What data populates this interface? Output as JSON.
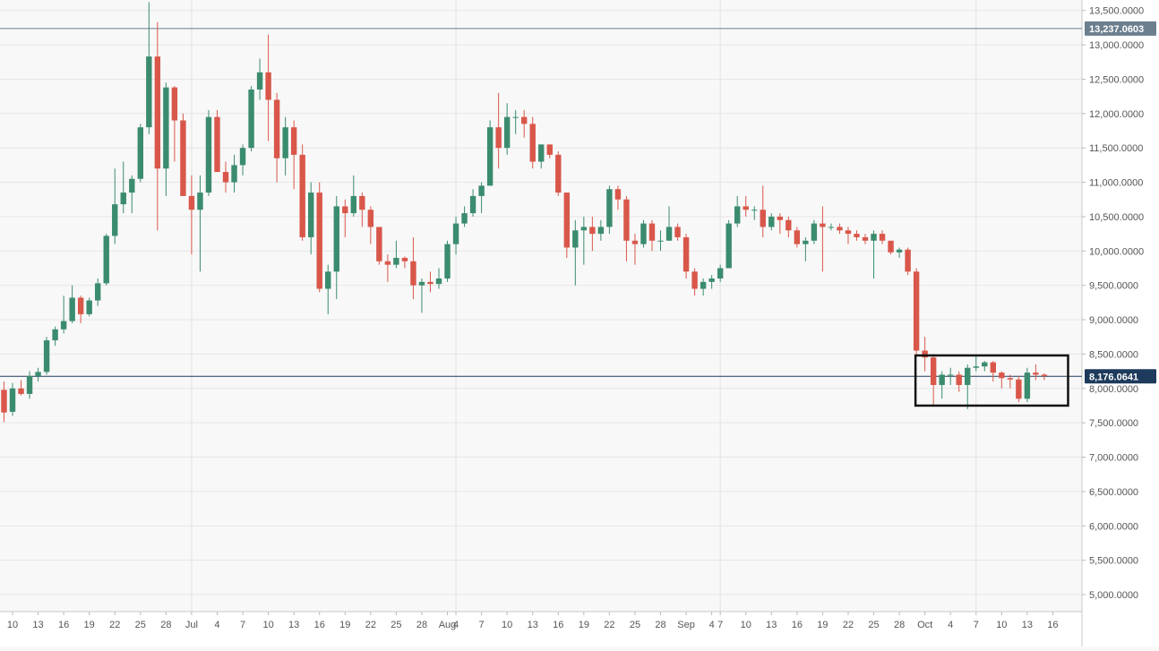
{
  "chart_data": {
    "type": "candlestick",
    "title": "",
    "ylabel": "",
    "xlabel": "",
    "ylim": [
      4700,
      13600
    ],
    "grid": true,
    "y_ticks": [
      "13,500.0000",
      "13,000.0000",
      "12,500.0000",
      "12,000.0000",
      "11,500.0000",
      "11,000.0000",
      "10,500.0000",
      "10,000.0000",
      "9,500.0000",
      "9,000.0000",
      "8,500.0000",
      "8,000.0000",
      "7,500.0000",
      "7,000.0000",
      "6,500.0000",
      "6,000.0000",
      "5,500.0000",
      "5,000.0000"
    ],
    "x_ticks": [
      "10",
      "13",
      "16",
      "19",
      "22",
      "25",
      "28",
      "Jul",
      "4",
      "7",
      "10",
      "13",
      "16",
      "19",
      "22",
      "25",
      "28",
      "Aug",
      "4",
      "7",
      "10",
      "13",
      "16",
      "19",
      "22",
      "25",
      "28",
      "Sep",
      "4",
      "7",
      "10",
      "13",
      "16",
      "19",
      "22",
      "25",
      "28",
      "Oct",
      "4",
      "7",
      "10",
      "13",
      "16"
    ],
    "ref_lines": [
      {
        "value": 13237.0603,
        "label": "13,237.0603",
        "color": "#6b7f8f"
      },
      {
        "value": 8176.0641,
        "label": "8,176.0641",
        "color": "#1e3a5c"
      }
    ],
    "highlight_box": {
      "x_start": "2019-09-24",
      "x_end": "2019-10-12",
      "y_low": 7750,
      "y_high": 8480
    },
    "colors": {
      "up": "#3b8c6e",
      "down": "#d9574a"
    },
    "candles": [
      {
        "date": "2019-06-09",
        "open": 7980,
        "high": 8100,
        "low": 7510,
        "close": 7650
      },
      {
        "date": "2019-06-10",
        "open": 7660,
        "high": 8080,
        "low": 7600,
        "close": 8000
      },
      {
        "date": "2019-06-11",
        "open": 8000,
        "high": 8120,
        "low": 7900,
        "close": 7920
      },
      {
        "date": "2019-06-12",
        "open": 7920,
        "high": 8250,
        "low": 7850,
        "close": 8180
      },
      {
        "date": "2019-06-13",
        "open": 8180,
        "high": 8300,
        "low": 8100,
        "close": 8240
      },
      {
        "date": "2019-06-14",
        "open": 8240,
        "high": 8750,
        "low": 8200,
        "close": 8700
      },
      {
        "date": "2019-06-15",
        "open": 8700,
        "high": 8900,
        "low": 8620,
        "close": 8860
      },
      {
        "date": "2019-06-16",
        "open": 8860,
        "high": 9350,
        "low": 8800,
        "close": 8980
      },
      {
        "date": "2019-06-17",
        "open": 8980,
        "high": 9500,
        "low": 8950,
        "close": 9320
      },
      {
        "date": "2019-06-18",
        "open": 9320,
        "high": 9350,
        "low": 8950,
        "close": 9080
      },
      {
        "date": "2019-06-19",
        "open": 9080,
        "high": 9320,
        "low": 9050,
        "close": 9280
      },
      {
        "date": "2019-06-20",
        "open": 9280,
        "high": 9600,
        "low": 9200,
        "close": 9530
      },
      {
        "date": "2019-06-21",
        "open": 9530,
        "high": 10250,
        "low": 9500,
        "close": 10220
      },
      {
        "date": "2019-06-22",
        "open": 10220,
        "high": 11200,
        "low": 10100,
        "close": 10680
      },
      {
        "date": "2019-06-23",
        "open": 10680,
        "high": 11300,
        "low": 10550,
        "close": 10850
      },
      {
        "date": "2019-06-24",
        "open": 10850,
        "high": 11100,
        "low": 10550,
        "close": 11050
      },
      {
        "date": "2019-06-25",
        "open": 11050,
        "high": 11850,
        "low": 11000,
        "close": 11800
      },
      {
        "date": "2019-06-26",
        "open": 11800,
        "high": 13620,
        "low": 11700,
        "close": 12830
      },
      {
        "date": "2019-06-27",
        "open": 12830,
        "high": 13330,
        "low": 10300,
        "close": 11200
      },
      {
        "date": "2019-06-28",
        "open": 11200,
        "high": 12450,
        "low": 10800,
        "close": 12380
      },
      {
        "date": "2019-06-29",
        "open": 12380,
        "high": 12400,
        "low": 11300,
        "close": 11900
      },
      {
        "date": "2019-06-30",
        "open": 11900,
        "high": 12000,
        "low": 10800,
        "close": 10800
      },
      {
        "date": "2019-07-01",
        "open": 10800,
        "high": 11100,
        "low": 9950,
        "close": 10600
      },
      {
        "date": "2019-07-02",
        "open": 10600,
        "high": 11100,
        "low": 9700,
        "close": 10850
      },
      {
        "date": "2019-07-03",
        "open": 10850,
        "high": 12050,
        "low": 10800,
        "close": 11950
      },
      {
        "date": "2019-07-04",
        "open": 11950,
        "high": 12050,
        "low": 11150,
        "close": 11150
      },
      {
        "date": "2019-07-05",
        "open": 11150,
        "high": 11300,
        "low": 10850,
        "close": 11000
      },
      {
        "date": "2019-07-06",
        "open": 11000,
        "high": 11400,
        "low": 10850,
        "close": 11250
      },
      {
        "date": "2019-07-07",
        "open": 11250,
        "high": 11550,
        "low": 11100,
        "close": 11500
      },
      {
        "date": "2019-07-08",
        "open": 11500,
        "high": 12400,
        "low": 11450,
        "close": 12350
      },
      {
        "date": "2019-07-09",
        "open": 12350,
        "high": 12800,
        "low": 12200,
        "close": 12600
      },
      {
        "date": "2019-07-10",
        "open": 12600,
        "high": 13150,
        "low": 11600,
        "close": 12200
      },
      {
        "date": "2019-07-11",
        "open": 12200,
        "high": 12300,
        "low": 11000,
        "close": 11350
      },
      {
        "date": "2019-07-12",
        "open": 11350,
        "high": 11950,
        "low": 11100,
        "close": 11800
      },
      {
        "date": "2019-07-13",
        "open": 11800,
        "high": 11900,
        "low": 10900,
        "close": 11400
      },
      {
        "date": "2019-07-14",
        "open": 11400,
        "high": 11550,
        "low": 10150,
        "close": 10200
      },
      {
        "date": "2019-07-15",
        "open": 10200,
        "high": 11000,
        "low": 9950,
        "close": 10850
      },
      {
        "date": "2019-07-16",
        "open": 10850,
        "high": 11000,
        "low": 9400,
        "close": 9450
      },
      {
        "date": "2019-07-17",
        "open": 9450,
        "high": 9800,
        "low": 9080,
        "close": 9700
      },
      {
        "date": "2019-07-18",
        "open": 9700,
        "high": 10800,
        "low": 9300,
        "close": 10650
      },
      {
        "date": "2019-07-19",
        "open": 10650,
        "high": 10750,
        "low": 10200,
        "close": 10550
      },
      {
        "date": "2019-07-20",
        "open": 10550,
        "high": 11100,
        "low": 10500,
        "close": 10800
      },
      {
        "date": "2019-07-21",
        "open": 10800,
        "high": 10850,
        "low": 10350,
        "close": 10600
      },
      {
        "date": "2019-07-22",
        "open": 10600,
        "high": 10650,
        "low": 10100,
        "close": 10350
      },
      {
        "date": "2019-07-23",
        "open": 10350,
        "high": 10350,
        "low": 9800,
        "close": 9850
      },
      {
        "date": "2019-07-24",
        "open": 9850,
        "high": 9950,
        "low": 9550,
        "close": 9800
      },
      {
        "date": "2019-07-25",
        "open": 9800,
        "high": 10150,
        "low": 9750,
        "close": 9900
      },
      {
        "date": "2019-07-26",
        "open": 9900,
        "high": 9920,
        "low": 9750,
        "close": 9850
      },
      {
        "date": "2019-07-27",
        "open": 9850,
        "high": 10200,
        "low": 9300,
        "close": 9500
      },
      {
        "date": "2019-07-28",
        "open": 9500,
        "high": 9600,
        "low": 9100,
        "close": 9550
      },
      {
        "date": "2019-07-29",
        "open": 9550,
        "high": 9700,
        "low": 9400,
        "close": 9520
      },
      {
        "date": "2019-07-30",
        "open": 9520,
        "high": 9750,
        "low": 9450,
        "close": 9600
      },
      {
        "date": "2019-07-31",
        "open": 9600,
        "high": 10150,
        "low": 9550,
        "close": 10100
      },
      {
        "date": "2019-08-01",
        "open": 10100,
        "high": 10500,
        "low": 9950,
        "close": 10400
      },
      {
        "date": "2019-08-02",
        "open": 10400,
        "high": 10650,
        "low": 10350,
        "close": 10550
      },
      {
        "date": "2019-08-03",
        "open": 10550,
        "high": 10900,
        "low": 10500,
        "close": 10800
      },
      {
        "date": "2019-08-04",
        "open": 10800,
        "high": 11000,
        "low": 10550,
        "close": 10950
      },
      {
        "date": "2019-08-05",
        "open": 10950,
        "high": 11900,
        "low": 10950,
        "close": 11800
      },
      {
        "date": "2019-08-06",
        "open": 11800,
        "high": 12300,
        "low": 11200,
        "close": 11500
      },
      {
        "date": "2019-08-07",
        "open": 11500,
        "high": 12150,
        "low": 11400,
        "close": 11950
      },
      {
        "date": "2019-08-08",
        "open": 11950,
        "high": 12050,
        "low": 11700,
        "close": 11950
      },
      {
        "date": "2019-08-09",
        "open": 11950,
        "high": 12050,
        "low": 11650,
        "close": 11850
      },
      {
        "date": "2019-08-10",
        "open": 11850,
        "high": 11950,
        "low": 11200,
        "close": 11300
      },
      {
        "date": "2019-08-11",
        "open": 11300,
        "high": 11550,
        "low": 11200,
        "close": 11550
      },
      {
        "date": "2019-08-12",
        "open": 11550,
        "high": 11550,
        "low": 11350,
        "close": 11400
      },
      {
        "date": "2019-08-13",
        "open": 11400,
        "high": 11450,
        "low": 10800,
        "close": 10850
      },
      {
        "date": "2019-08-14",
        "open": 10850,
        "high": 10850,
        "low": 9900,
        "close": 10050
      },
      {
        "date": "2019-08-15",
        "open": 10050,
        "high": 10450,
        "low": 9500,
        "close": 10300
      },
      {
        "date": "2019-08-16",
        "open": 10300,
        "high": 10500,
        "low": 9800,
        "close": 10350
      },
      {
        "date": "2019-08-17",
        "open": 10350,
        "high": 10500,
        "low": 10000,
        "close": 10250
      },
      {
        "date": "2019-08-18",
        "open": 10250,
        "high": 10450,
        "low": 10150,
        "close": 10350
      },
      {
        "date": "2019-08-19",
        "open": 10350,
        "high": 10950,
        "low": 10250,
        "close": 10900
      },
      {
        "date": "2019-08-20",
        "open": 10900,
        "high": 10950,
        "low": 10600,
        "close": 10750
      },
      {
        "date": "2019-08-21",
        "open": 10750,
        "high": 10800,
        "low": 9850,
        "close": 10150
      },
      {
        "date": "2019-08-22",
        "open": 10150,
        "high": 10250,
        "low": 9800,
        "close": 10100
      },
      {
        "date": "2019-08-23",
        "open": 10100,
        "high": 10450,
        "low": 10050,
        "close": 10400
      },
      {
        "date": "2019-08-24",
        "open": 10400,
        "high": 10450,
        "low": 10000,
        "close": 10150
      },
      {
        "date": "2019-08-25",
        "open": 10150,
        "high": 10300,
        "low": 10000,
        "close": 10150
      },
      {
        "date": "2019-08-26",
        "open": 10150,
        "high": 10650,
        "low": 10150,
        "close": 10350
      },
      {
        "date": "2019-08-27",
        "open": 10350,
        "high": 10400,
        "low": 10150,
        "close": 10200
      },
      {
        "date": "2019-08-28",
        "open": 10200,
        "high": 10250,
        "low": 9600,
        "close": 9700
      },
      {
        "date": "2019-08-29",
        "open": 9700,
        "high": 9750,
        "low": 9350,
        "close": 9450
      },
      {
        "date": "2019-08-30",
        "open": 9450,
        "high": 9600,
        "low": 9350,
        "close": 9550
      },
      {
        "date": "2019-08-31",
        "open": 9550,
        "high": 9650,
        "low": 9450,
        "close": 9600
      },
      {
        "date": "2019-09-01",
        "open": 9600,
        "high": 9800,
        "low": 9550,
        "close": 9750
      },
      {
        "date": "2019-09-02",
        "open": 9750,
        "high": 10450,
        "low": 9750,
        "close": 10400
      },
      {
        "date": "2019-09-03",
        "open": 10400,
        "high": 10800,
        "low": 10350,
        "close": 10650
      },
      {
        "date": "2019-09-04",
        "open": 10650,
        "high": 10800,
        "low": 10500,
        "close": 10600
      },
      {
        "date": "2019-09-05",
        "open": 10600,
        "high": 10650,
        "low": 10450,
        "close": 10600
      },
      {
        "date": "2019-09-06",
        "open": 10600,
        "high": 10950,
        "low": 10200,
        "close": 10350
      },
      {
        "date": "2019-09-07",
        "open": 10350,
        "high": 10550,
        "low": 10300,
        "close": 10500
      },
      {
        "date": "2019-09-08",
        "open": 10500,
        "high": 10550,
        "low": 10250,
        "close": 10450
      },
      {
        "date": "2019-09-09",
        "open": 10450,
        "high": 10500,
        "low": 10200,
        "close": 10300
      },
      {
        "date": "2019-09-10",
        "open": 10300,
        "high": 10350,
        "low": 10050,
        "close": 10100
      },
      {
        "date": "2019-09-11",
        "open": 10100,
        "high": 10200,
        "low": 9850,
        "close": 10150
      },
      {
        "date": "2019-09-12",
        "open": 10150,
        "high": 10450,
        "low": 10100,
        "close": 10400
      },
      {
        "date": "2019-09-13",
        "open": 10400,
        "high": 10650,
        "low": 9700,
        "close": 10350
      },
      {
        "date": "2019-09-14",
        "open": 10350,
        "high": 10400,
        "low": 10300,
        "close": 10350
      },
      {
        "date": "2019-09-15",
        "open": 10350,
        "high": 10400,
        "low": 10250,
        "close": 10300
      },
      {
        "date": "2019-09-16",
        "open": 10300,
        "high": 10350,
        "low": 10100,
        "close": 10250
      },
      {
        "date": "2019-09-17",
        "open": 10250,
        "high": 10300,
        "low": 10150,
        "close": 10200
      },
      {
        "date": "2019-09-18",
        "open": 10200,
        "high": 10250,
        "low": 10100,
        "close": 10150
      },
      {
        "date": "2019-09-19",
        "open": 10150,
        "high": 10300,
        "low": 9600,
        "close": 10250
      },
      {
        "date": "2019-09-20",
        "open": 10250,
        "high": 10300,
        "low": 10100,
        "close": 10150
      },
      {
        "date": "2019-09-21",
        "open": 10150,
        "high": 10150,
        "low": 9950,
        "close": 9980
      },
      {
        "date": "2019-09-22",
        "open": 9980,
        "high": 10050,
        "low": 9900,
        "close": 10020
      },
      {
        "date": "2019-09-23",
        "open": 10020,
        "high": 10050,
        "low": 9650,
        "close": 9700
      },
      {
        "date": "2019-09-24",
        "open": 9700,
        "high": 9750,
        "low": 8500,
        "close": 8550
      },
      {
        "date": "2019-09-25",
        "open": 8550,
        "high": 8750,
        "low": 8250,
        "close": 8450
      },
      {
        "date": "2019-09-26",
        "open": 8450,
        "high": 8500,
        "low": 7750,
        "close": 8050
      },
      {
        "date": "2019-09-27",
        "open": 8050,
        "high": 8250,
        "low": 7850,
        "close": 8200
      },
      {
        "date": "2019-09-28",
        "open": 8200,
        "high": 8300,
        "low": 8050,
        "close": 8200
      },
      {
        "date": "2019-09-29",
        "open": 8200,
        "high": 8250,
        "low": 7950,
        "close": 8050
      },
      {
        "date": "2019-09-30",
        "open": 8050,
        "high": 8350,
        "low": 7700,
        "close": 8300
      },
      {
        "date": "2019-10-01",
        "open": 8300,
        "high": 8500,
        "low": 8250,
        "close": 8320
      },
      {
        "date": "2019-10-02",
        "open": 8320,
        "high": 8400,
        "low": 8250,
        "close": 8380
      },
      {
        "date": "2019-10-03",
        "open": 8380,
        "high": 8400,
        "low": 8100,
        "close": 8230
      },
      {
        "date": "2019-10-04",
        "open": 8230,
        "high": 8250,
        "low": 8000,
        "close": 8150
      },
      {
        "date": "2019-10-05",
        "open": 8150,
        "high": 8200,
        "low": 8000,
        "close": 8130
      },
      {
        "date": "2019-10-06",
        "open": 8130,
        "high": 8180,
        "low": 7800,
        "close": 7850
      },
      {
        "date": "2019-10-07",
        "open": 7850,
        "high": 8300,
        "low": 7800,
        "close": 8230
      },
      {
        "date": "2019-10-08",
        "open": 8230,
        "high": 8350,
        "low": 8120,
        "close": 8200
      },
      {
        "date": "2019-10-09",
        "open": 8200,
        "high": 8220,
        "low": 8120,
        "close": 8180
      }
    ]
  }
}
